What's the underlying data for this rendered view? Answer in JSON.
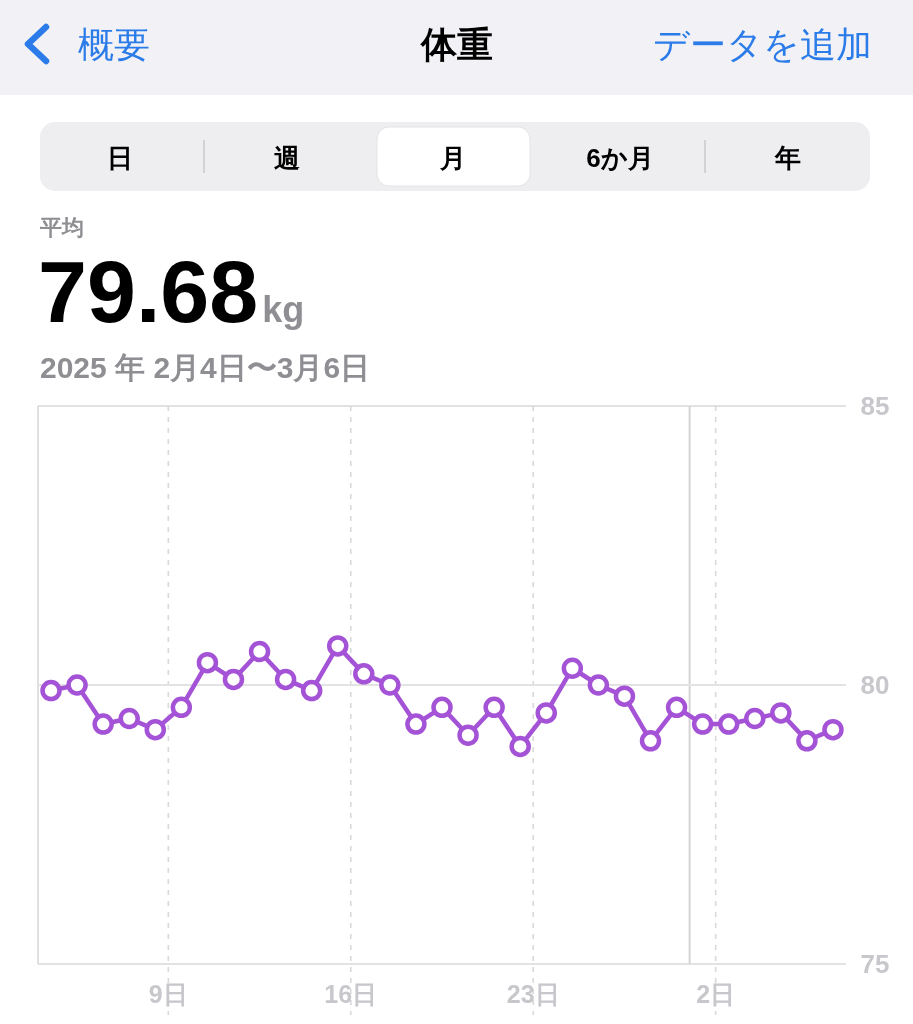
{
  "chart_data": {
    "type": "line",
    "title": "体重",
    "subtitle": "2025 年 2月4日〜3月6日",
    "annotations": [
      "概要",
      "データを追加",
      "日",
      "週",
      "月",
      "6か月",
      "年",
      "平均",
      "79.68",
      "kg"
    ],
    "x": [
      "2025-02-04T12:00",
      "2025-02-05T12:00",
      "2025-02-06T12:00",
      "2025-02-07T12:00",
      "2025-02-08T12:00",
      "2025-02-09T12:00",
      "2025-02-10T12:00",
      "2025-02-11T12:00",
      "2025-02-12T12:00",
      "2025-02-13T12:00",
      "2025-02-14T12:00",
      "2025-02-15T12:00",
      "2025-02-16T12:00",
      "2025-02-17T12:00",
      "2025-02-18T12:00",
      "2025-02-19T12:00",
      "2025-02-20T12:00",
      "2025-02-21T12:00",
      "2025-02-22T12:00",
      "2025-02-23T12:00",
      "2025-02-24T12:00",
      "2025-02-25T12:00",
      "2025-02-26T12:00",
      "2025-02-27T12:00",
      "2025-02-28T12:00",
      "2025-03-01T12:00",
      "2025-03-02T12:00",
      "2025-03-03T12:00",
      "2025-03-04T12:00",
      "2025-03-05T12:00",
      "2025-03-06T12:00"
    ],
    "series": [
      {
        "color": "#a452d6",
        "values": [
          79.9,
          80.0,
          79.3,
          79.4,
          79.2,
          79.6,
          80.4,
          80.1,
          80.6,
          80.1,
          79.9,
          80.7,
          80.2,
          80.0,
          79.3,
          79.6,
          79.1,
          79.6,
          78.9,
          79.5,
          80.3,
          80.0,
          79.8,
          79.0,
          79.6,
          79.3,
          79.3,
          79.4,
          79.5,
          79.0,
          79.2
        ]
      }
    ],
    "xlim": [
      "2025-02-04",
      "2025-03-07"
    ],
    "xticks": [
      {
        "value": "2025-02-09",
        "label": "9日"
      },
      {
        "value": "2025-02-16",
        "label": "16日"
      },
      {
        "value": "2025-02-23",
        "label": "23日"
      },
      {
        "value": "2025-03-02",
        "label": "2日"
      }
    ],
    "ylim": [
      75,
      85
    ],
    "yticks": [
      75,
      80,
      85
    ],
    "grid": true,
    "marker": "circle",
    "ref_lines": [
      {
        "axis": "x",
        "value": "2025-03-01",
        "color": "#d4d4d4"
      },
      {
        "axis": "y",
        "value": 80,
        "color": "#e3e3e3"
      }
    ]
  }
}
